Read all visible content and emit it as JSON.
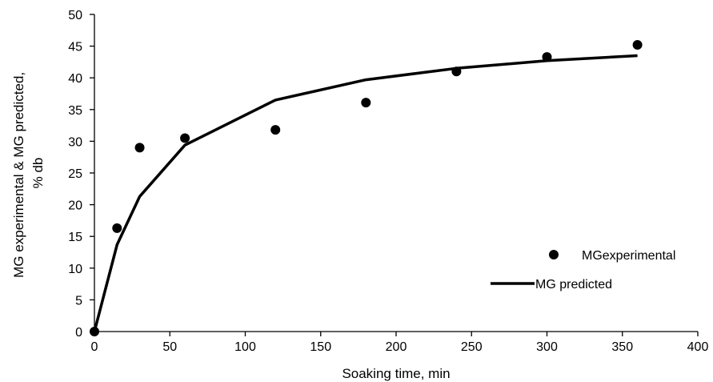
{
  "chart_data": {
    "type": "scatter",
    "xlabel": "Soaking time, min",
    "ylabel_line1": "MG experimental & MG predicted,",
    "ylabel_line2": "% db",
    "xlim": [
      0,
      400
    ],
    "ylim": [
      0,
      50
    ],
    "x_ticks": [
      0,
      50,
      100,
      150,
      200,
      250,
      300,
      350,
      400
    ],
    "y_ticks": [
      0,
      5,
      10,
      15,
      20,
      25,
      30,
      35,
      40,
      45,
      50
    ],
    "grid": false,
    "legend_position": "bottom-right",
    "series": [
      {
        "name": "MGexperimental",
        "kind": "markers",
        "color": "#000000",
        "points": [
          {
            "x": 0,
            "y": 0
          },
          {
            "x": 15,
            "y": 16.3
          },
          {
            "x": 30,
            "y": 29.0
          },
          {
            "x": 60,
            "y": 30.5
          },
          {
            "x": 120,
            "y": 31.8
          },
          {
            "x": 180,
            "y": 36.1
          },
          {
            "x": 240,
            "y": 41.0
          },
          {
            "x": 300,
            "y": 43.3
          },
          {
            "x": 360,
            "y": 45.2
          }
        ]
      },
      {
        "name": "MG predicted",
        "kind": "line",
        "color": "#000000",
        "points": [
          {
            "x": 0,
            "y": 0
          },
          {
            "x": 15,
            "y": 13.7
          },
          {
            "x": 30,
            "y": 21.3
          },
          {
            "x": 60,
            "y": 29.4
          },
          {
            "x": 120,
            "y": 36.5
          },
          {
            "x": 180,
            "y": 39.7
          },
          {
            "x": 240,
            "y": 41.5
          },
          {
            "x": 300,
            "y": 42.7
          },
          {
            "x": 360,
            "y": 43.5
          }
        ]
      }
    ]
  }
}
